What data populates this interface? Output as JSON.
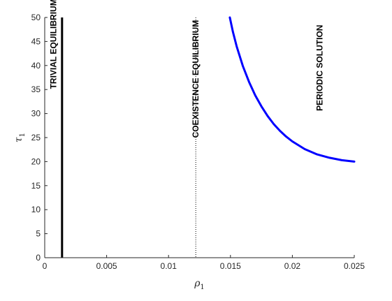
{
  "chart_data": {
    "type": "line",
    "title": "",
    "xlabel": "ρ",
    "xlabel_sub": "1",
    "ylabel": "τ",
    "ylabel_sub": "1",
    "xlim": [
      0,
      0.025
    ],
    "ylim": [
      0,
      50
    ],
    "x_ticks": [
      0,
      0.005,
      0.01,
      0.015,
      0.02,
      0.025
    ],
    "x_tick_labels": [
      "0",
      "0.005",
      "0.01",
      "0.015",
      "0.02",
      "0.025"
    ],
    "y_ticks": [
      0,
      5,
      10,
      15,
      20,
      25,
      30,
      35,
      40,
      45,
      50
    ],
    "y_tick_labels": [
      "0",
      "5",
      "10",
      "15",
      "20",
      "25",
      "30",
      "35",
      "40",
      "45",
      "50"
    ],
    "grid": false,
    "vertical_lines": [
      {
        "x": 0.0014,
        "style": "solid",
        "color": "#000000"
      },
      {
        "x": 0.0122,
        "style": "dotted",
        "color": "#000000"
      }
    ],
    "series": [
      {
        "color": "#0000ff",
        "x": [
          0.01495,
          0.0152,
          0.0155,
          0.016,
          0.0165,
          0.017,
          0.0175,
          0.018,
          0.0185,
          0.019,
          0.0195,
          0.02,
          0.021,
          0.022,
          0.023,
          0.024,
          0.025
        ],
        "y": [
          50,
          47.0,
          44.0,
          39.9,
          36.6,
          33.8,
          31.5,
          29.5,
          27.8,
          26.4,
          25.2,
          24.2,
          22.6,
          21.5,
          20.8,
          20.3,
          20.0
        ]
      }
    ],
    "annotations": [
      {
        "text": "TRIVIAL EQUILIBRIUM",
        "x": 0.0007,
        "y": 44.5
      },
      {
        "text": "COEXISTENCE EQUILIBRIUM",
        "x": 0.0122,
        "y": 37.2
      },
      {
        "text": "PERIODIC SOLUTION",
        "x": 0.0222,
        "y": 39.5
      }
    ]
  }
}
